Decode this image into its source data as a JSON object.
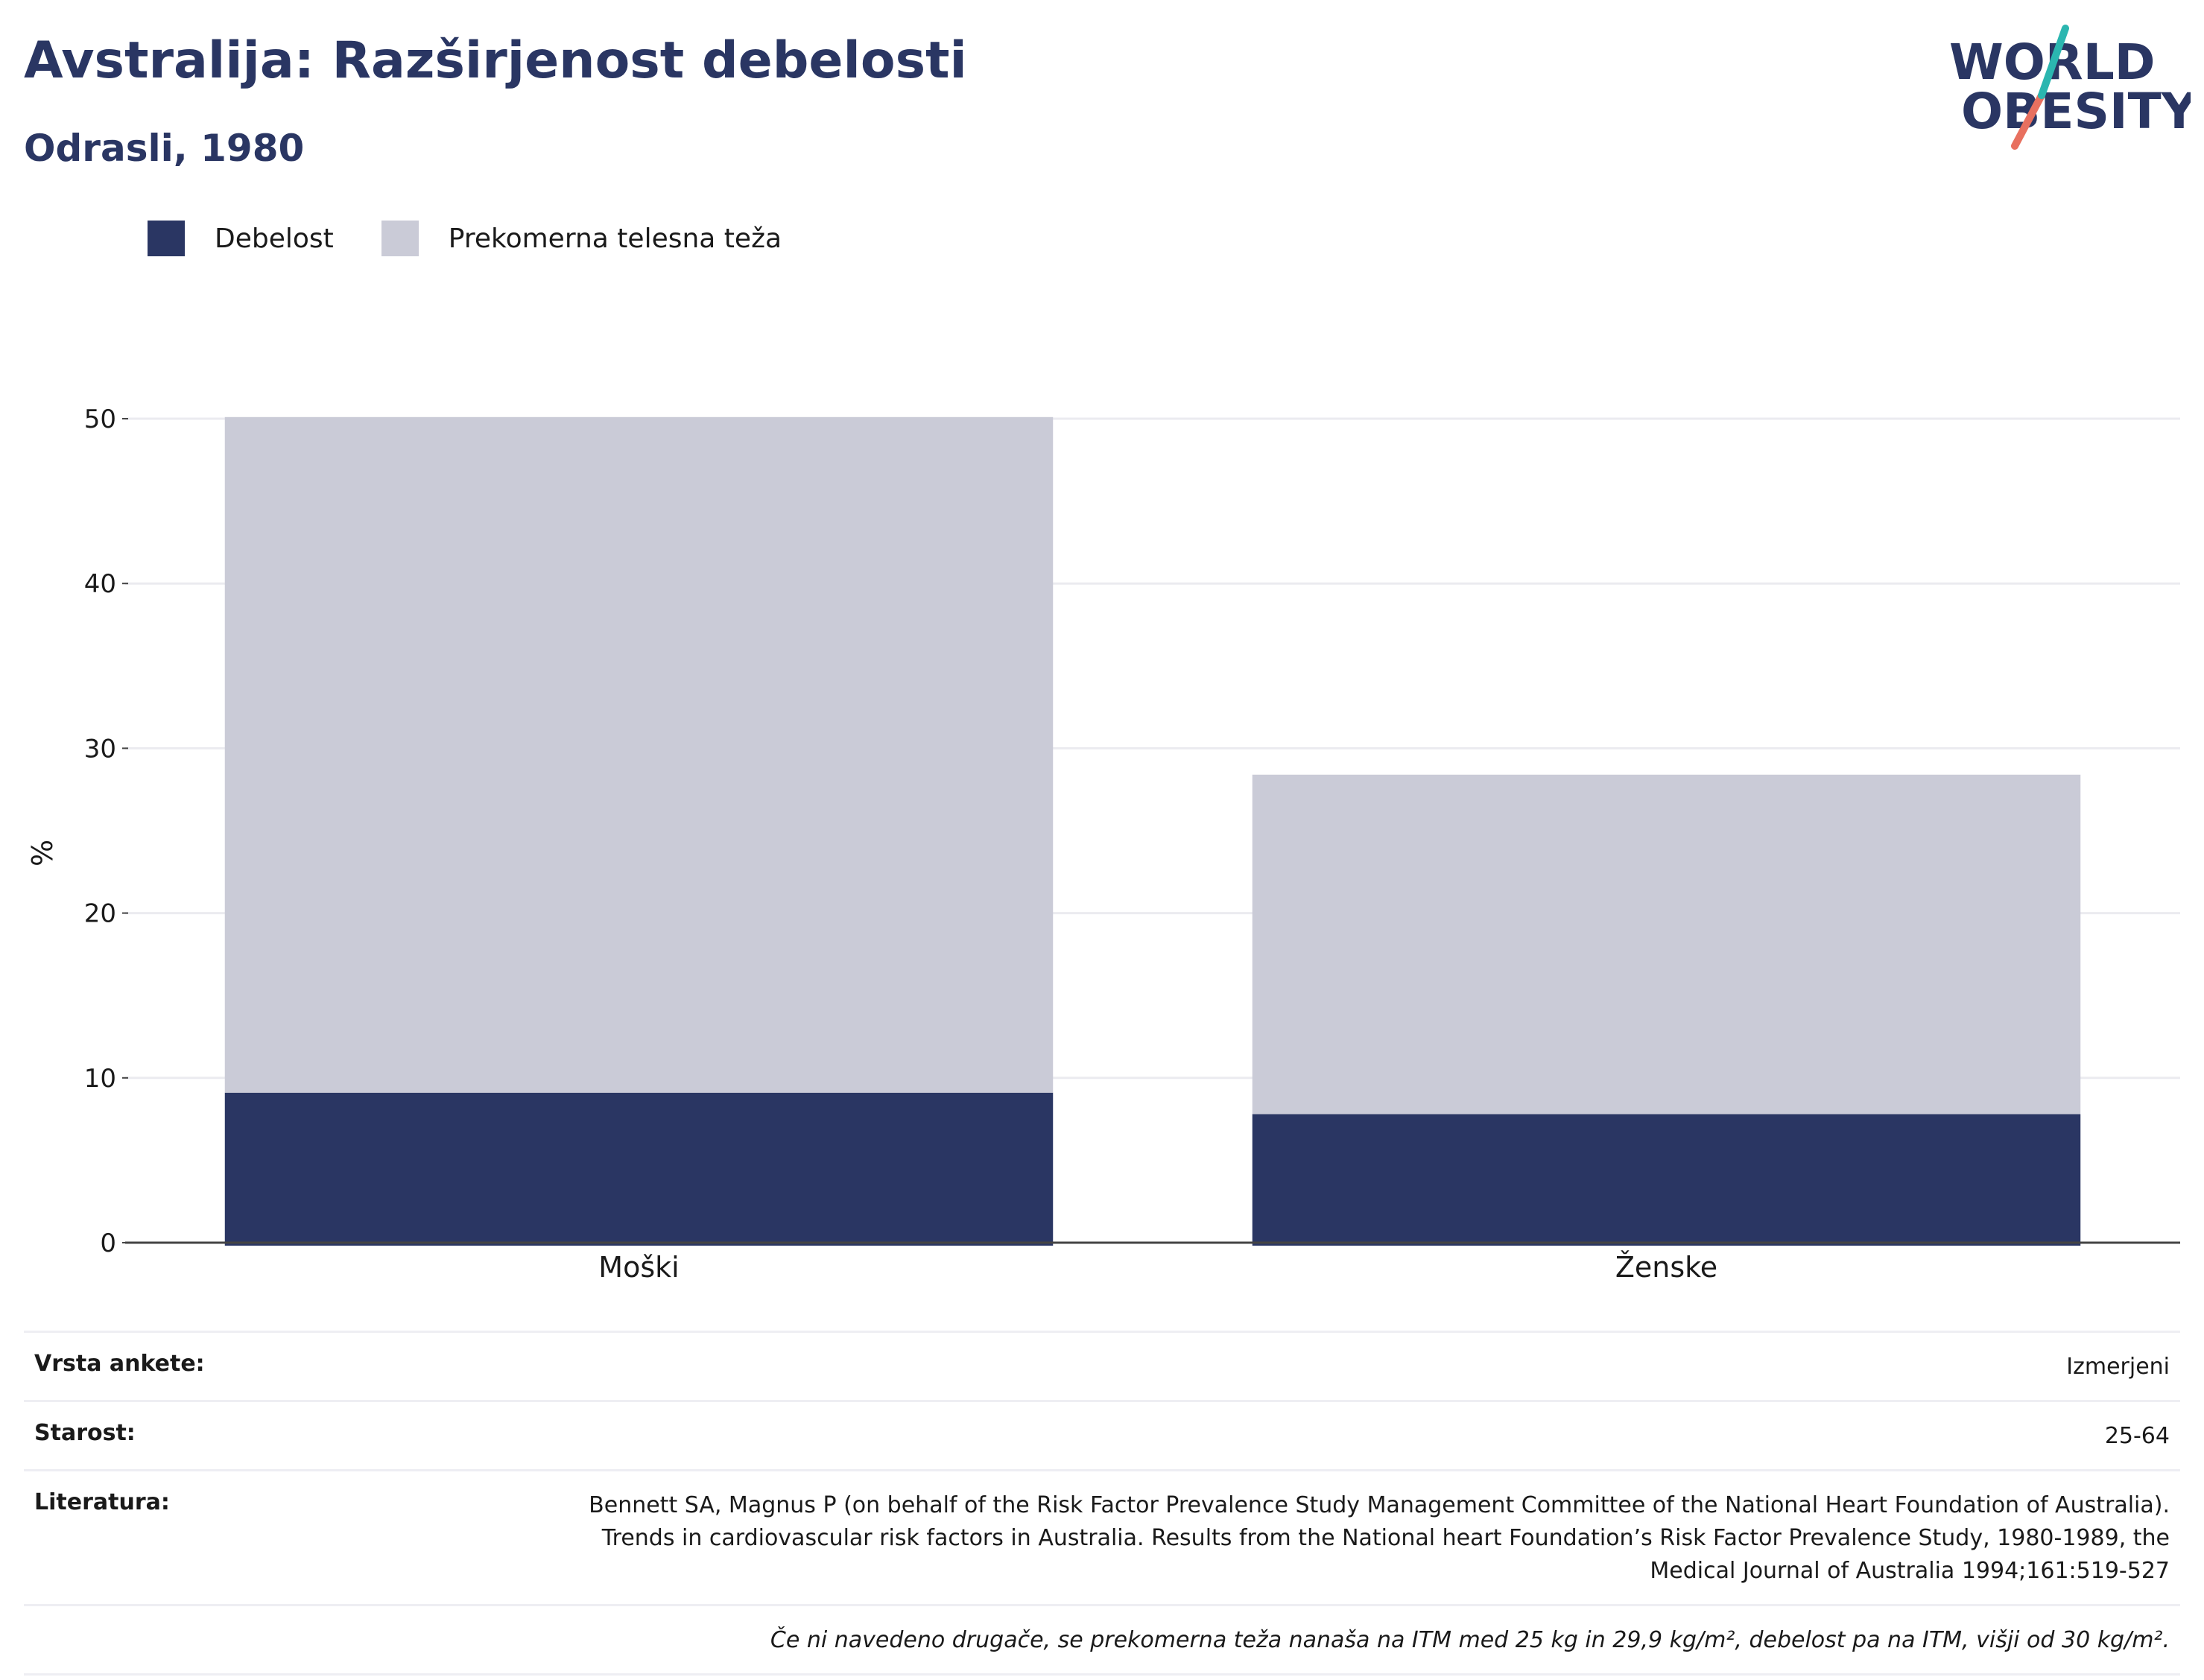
{
  "header": {
    "title": "Avstralija: Razširjenost debelosti",
    "subtitle": "Odrasli, 1980"
  },
  "logo": {
    "line1": "WORLD",
    "line2": "OBESITY"
  },
  "colors": {
    "obesity": "#2a3663",
    "overweight": "#cacbd7",
    "title": "#2a3663",
    "logo_teal": "#2bb6b0",
    "logo_coral": "#e8705f"
  },
  "legend": [
    {
      "label": "Debelost",
      "color": "#2a3663"
    },
    {
      "label": "Prekomerna telesna teža",
      "color": "#cacbd7"
    }
  ],
  "chart_data": {
    "type": "bar",
    "stacked": true,
    "categories": [
      "Moški",
      "Ženske"
    ],
    "series": [
      {
        "name": "Debelost",
        "values": [
          9.1,
          7.8
        ]
      },
      {
        "name": "Prekomerna telesna teža",
        "values": [
          41.0,
          20.6
        ]
      }
    ],
    "ylabel": "%",
    "ylim": [
      0,
      50
    ],
    "yticks": [
      0,
      10,
      20,
      30,
      40,
      50
    ],
    "grid": true,
    "legend_position": "top-left"
  },
  "info": {
    "rows": [
      {
        "label": "Vrsta ankete:",
        "value": "Izmerjeni"
      },
      {
        "label": "Starost:",
        "value": "25-64"
      },
      {
        "label": "Literatura:",
        "value": "Bennett SA, Magnus P (on behalf of the Risk Factor Prevalence Study Management Committee of the National Heart Foundation of Australia). Trends in cardiovascular risk factors in Australia. Results from the National heart Foundation’s Risk Factor Prevalence Study, 1980-1989, the Medical Journal of Australia 1994;161:519-527"
      }
    ],
    "note": "Če ni navedeno drugače, se prekomerna teža nanaša na ITM med 25 kg in 29,9 kg/m², debelost pa na ITM, višji od 30 kg/m²."
  }
}
